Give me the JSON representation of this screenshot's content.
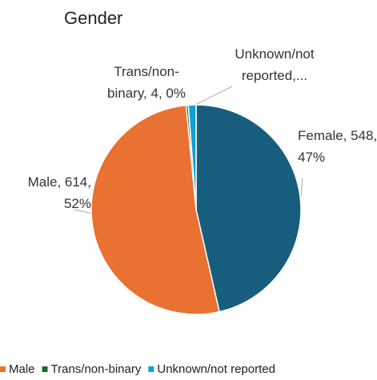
{
  "chart_data": {
    "type": "pie",
    "title": "Gender",
    "categories": [
      "Female",
      "Male",
      "Trans/non-binary",
      "Unknown/not reported"
    ],
    "values": [
      548,
      614,
      4,
      14
    ],
    "value_labels": [
      "Female, 548, 47%",
      "Male, 614, 52%",
      "Trans/non-binary, 4, 0%",
      "Unknown/not reported,..."
    ],
    "colors": [
      "#175e7e",
      "#e97132",
      "#196b24",
      "#0f9ed5"
    ],
    "legend": "bottom"
  }
}
